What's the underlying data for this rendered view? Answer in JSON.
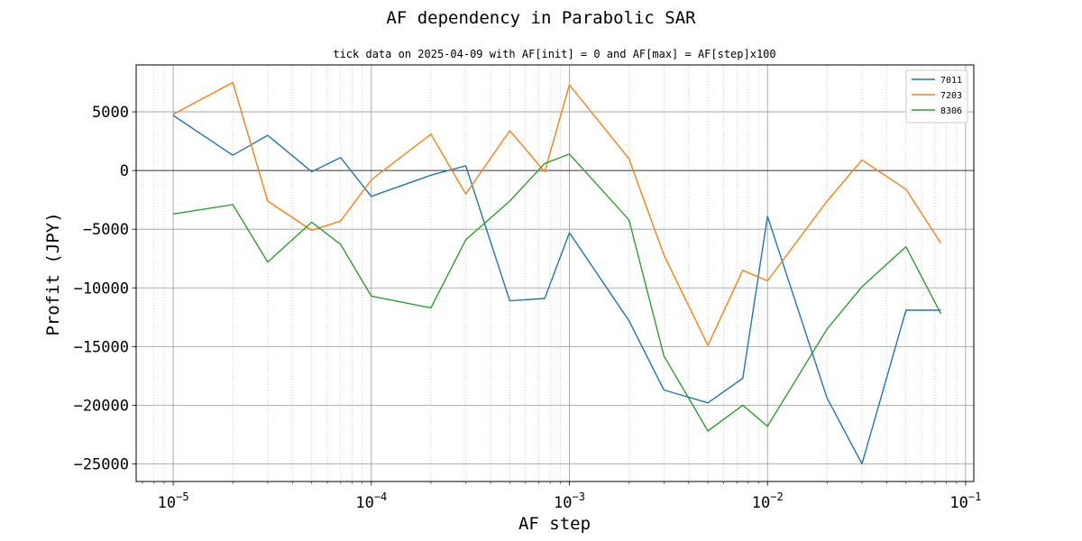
{
  "chart_data": {
    "type": "line",
    "title": "AF dependency in Parabolic SAR",
    "subtitle": "tick data on 2025-04-09 with AF[init] = 0 and AF[max] = AF[step]x100",
    "xlabel": "AF step",
    "ylabel": "Profit (JPY)",
    "x_scale": "log",
    "xlim": [
      6.5e-06,
      0.11
    ],
    "ylim": [
      -26500,
      9000
    ],
    "x_ticks": [
      {
        "value": 1e-05,
        "base": "10",
        "exp": "−5"
      },
      {
        "value": 0.0001,
        "base": "10",
        "exp": "−4"
      },
      {
        "value": 0.001,
        "base": "10",
        "exp": "−3"
      },
      {
        "value": 0.01,
        "base": "10",
        "exp": "−2"
      },
      {
        "value": 0.1,
        "base": "10",
        "exp": "−1"
      }
    ],
    "y_ticks": [
      {
        "value": 5000,
        "label": "5000"
      },
      {
        "value": 0,
        "label": "0"
      },
      {
        "value": -5000,
        "label": "−5000"
      },
      {
        "value": -10000,
        "label": "−10000"
      },
      {
        "value": -15000,
        "label": "−15000"
      },
      {
        "value": -20000,
        "label": "−20000"
      },
      {
        "value": -25000,
        "label": "−25000"
      }
    ],
    "grid": true,
    "minor_grid": true,
    "zero_line": true,
    "legend_position": "top-right",
    "x": [
      1e-05,
      2e-05,
      3e-05,
      5e-05,
      7e-05,
      0.0001,
      0.0002,
      0.0003,
      0.0005,
      0.00075,
      0.001,
      0.002,
      0.003,
      0.005,
      0.0075,
      0.01,
      0.02,
      0.03,
      0.05,
      0.075
    ],
    "series": [
      {
        "name": "7011",
        "color": "#1f77b4",
        "values": [
          4700,
          1300,
          3000,
          -100,
          1100,
          -2200,
          -400,
          400,
          -11100,
          -10900,
          -5300,
          -12800,
          -18700,
          -19800,
          -17700,
          -3900,
          -19400,
          -25000,
          -11900,
          -11900
        ]
      },
      {
        "name": "7203",
        "color": "#ff7f0e",
        "values": [
          4800,
          7500,
          -2600,
          -5100,
          -4300,
          -800,
          3100,
          -2000,
          3400,
          -100,
          7300,
          1000,
          -7200,
          -14900,
          -8500,
          -9400,
          -2600,
          900,
          -1600,
          -6200
        ]
      },
      {
        "name": "8306",
        "color": "#2ca02c",
        "values": [
          -3700,
          -2900,
          -7800,
          -4400,
          -6300,
          -10700,
          -11700,
          -5900,
          -2600,
          600,
          1400,
          -4200,
          -15800,
          -22200,
          -20000,
          -21800,
          -13500,
          -9900,
          -6500,
          -12200
        ]
      }
    ]
  }
}
